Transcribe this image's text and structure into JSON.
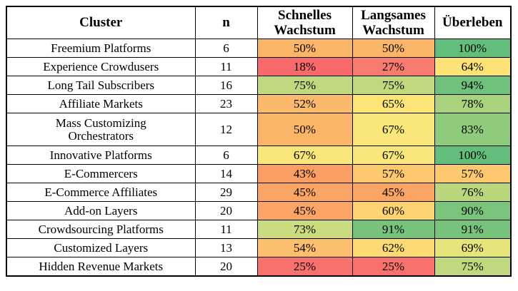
{
  "table": {
    "columns": [
      {
        "label": "Cluster"
      },
      {
        "label": "n"
      },
      {
        "label": "Schnelles Wachstum"
      },
      {
        "label": "Langsames Wachstum"
      },
      {
        "label": "Überleben"
      }
    ],
    "rows": [
      {
        "cluster": "Freemium Platforms",
        "n": "6",
        "fast": {
          "value": "50%",
          "color": "#FBB569"
        },
        "slow": {
          "value": "50%",
          "color": "#FBB569"
        },
        "survive": {
          "value": "100%",
          "color": "#63BE7B"
        }
      },
      {
        "cluster": "Experience Crowdusers",
        "n": "11",
        "fast": {
          "value": "18%",
          "color": "#F8696B"
        },
        "slow": {
          "value": "27%",
          "color": "#F87B6F"
        },
        "survive": {
          "value": "64%",
          "color": "#FDE277"
        }
      },
      {
        "cluster": "Long Tail Subscribers",
        "n": "16",
        "fast": {
          "value": "75%",
          "color": "#C0D97E"
        },
        "slow": {
          "value": "75%",
          "color": "#C0D97E"
        },
        "survive": {
          "value": "94%",
          "color": "#70C17B"
        }
      },
      {
        "cluster": "Affiliate Markets",
        "n": "23",
        "fast": {
          "value": "52%",
          "color": "#FBB96B"
        },
        "slow": {
          "value": "65%",
          "color": "#FDE477"
        },
        "survive": {
          "value": "78%",
          "color": "#A8D27D"
        }
      },
      {
        "cluster": "Mass Customizing Orchestrators",
        "n": "12",
        "tall": true,
        "fast": {
          "value": "50%",
          "color": "#FBB569"
        },
        "slow": {
          "value": "67%",
          "color": "#F9E77C"
        },
        "survive": {
          "value": "83%",
          "color": "#8FCB7C"
        }
      },
      {
        "cluster": "Innovative Platforms",
        "n": "6",
        "fast": {
          "value": "67%",
          "color": "#F9E77C"
        },
        "slow": {
          "value": "67%",
          "color": "#F9E77C"
        },
        "survive": {
          "value": "100%",
          "color": "#63BE7B"
        }
      },
      {
        "cluster": "E-Commercers",
        "n": "14",
        "fast": {
          "value": "43%",
          "color": "#FA9E64"
        },
        "slow": {
          "value": "57%",
          "color": "#FCC96F"
        },
        "survive": {
          "value": "57%",
          "color": "#FCC96F"
        }
      },
      {
        "cluster": "E-Commerce Affiliates",
        "n": "29",
        "fast": {
          "value": "45%",
          "color": "#FAA466"
        },
        "slow": {
          "value": "45%",
          "color": "#FAA466"
        },
        "survive": {
          "value": "76%",
          "color": "#BBD77E"
        }
      },
      {
        "cluster": "Add-on Layers",
        "n": "20",
        "fast": {
          "value": "45%",
          "color": "#FAA466"
        },
        "slow": {
          "value": "60%",
          "color": "#FCD472"
        },
        "survive": {
          "value": "90%",
          "color": "#7AC47C"
        }
      },
      {
        "cluster": "Crowdsourcing Platforms",
        "n": "11",
        "fast": {
          "value": "73%",
          "color": "#CADC7F"
        },
        "slow": {
          "value": "91%",
          "color": "#77C37C"
        },
        "survive": {
          "value": "91%",
          "color": "#77C37C"
        }
      },
      {
        "cluster": "Customized Layers",
        "n": "13",
        "fast": {
          "value": "54%",
          "color": "#FBBF6D"
        },
        "slow": {
          "value": "62%",
          "color": "#FCDB75"
        },
        "survive": {
          "value": "69%",
          "color": "#E6E57B"
        }
      },
      {
        "cluster": "Hidden Revenue Markets",
        "n": "20",
        "fast": {
          "value": "25%",
          "color": "#F8726D"
        },
        "slow": {
          "value": "25%",
          "color": "#F8726D"
        },
        "survive": {
          "value": "75%",
          "color": "#C0D97E"
        }
      }
    ],
    "color_scale": {
      "min": "#F8696B",
      "mid": "#FFEB84",
      "max": "#63BE7B"
    }
  },
  "chart_data": {
    "type": "table",
    "title": "",
    "columns": [
      "Cluster",
      "n",
      "Schnelles Wachstum",
      "Langsames Wachstum",
      "Überleben"
    ],
    "categories": [
      "Freemium Platforms",
      "Experience Crowdusers",
      "Long Tail Subscribers",
      "Affiliate Markets",
      "Mass Customizing Orchestrators",
      "Innovative Platforms",
      "E-Commercers",
      "E-Commerce Affiliates",
      "Add-on Layers",
      "Crowdsourcing Platforms",
      "Customized Layers",
      "Hidden Revenue Markets"
    ],
    "series": [
      {
        "name": "n",
        "values": [
          6,
          11,
          16,
          23,
          12,
          6,
          14,
          29,
          20,
          11,
          13,
          20
        ]
      },
      {
        "name": "Schnelles Wachstum (%)",
        "values": [
          50,
          18,
          75,
          52,
          50,
          67,
          43,
          45,
          45,
          73,
          54,
          25
        ]
      },
      {
        "name": "Langsames Wachstum (%)",
        "values": [
          50,
          27,
          75,
          65,
          67,
          67,
          57,
          45,
          60,
          91,
          62,
          25
        ]
      },
      {
        "name": "Überleben (%)",
        "values": [
          100,
          64,
          94,
          78,
          83,
          100,
          57,
          76,
          90,
          91,
          69,
          75
        ]
      }
    ],
    "layout_hints": "percentage cells conditionally formatted with red-yellow-green 3-color scale; Cluster and n columns uncolored"
  }
}
